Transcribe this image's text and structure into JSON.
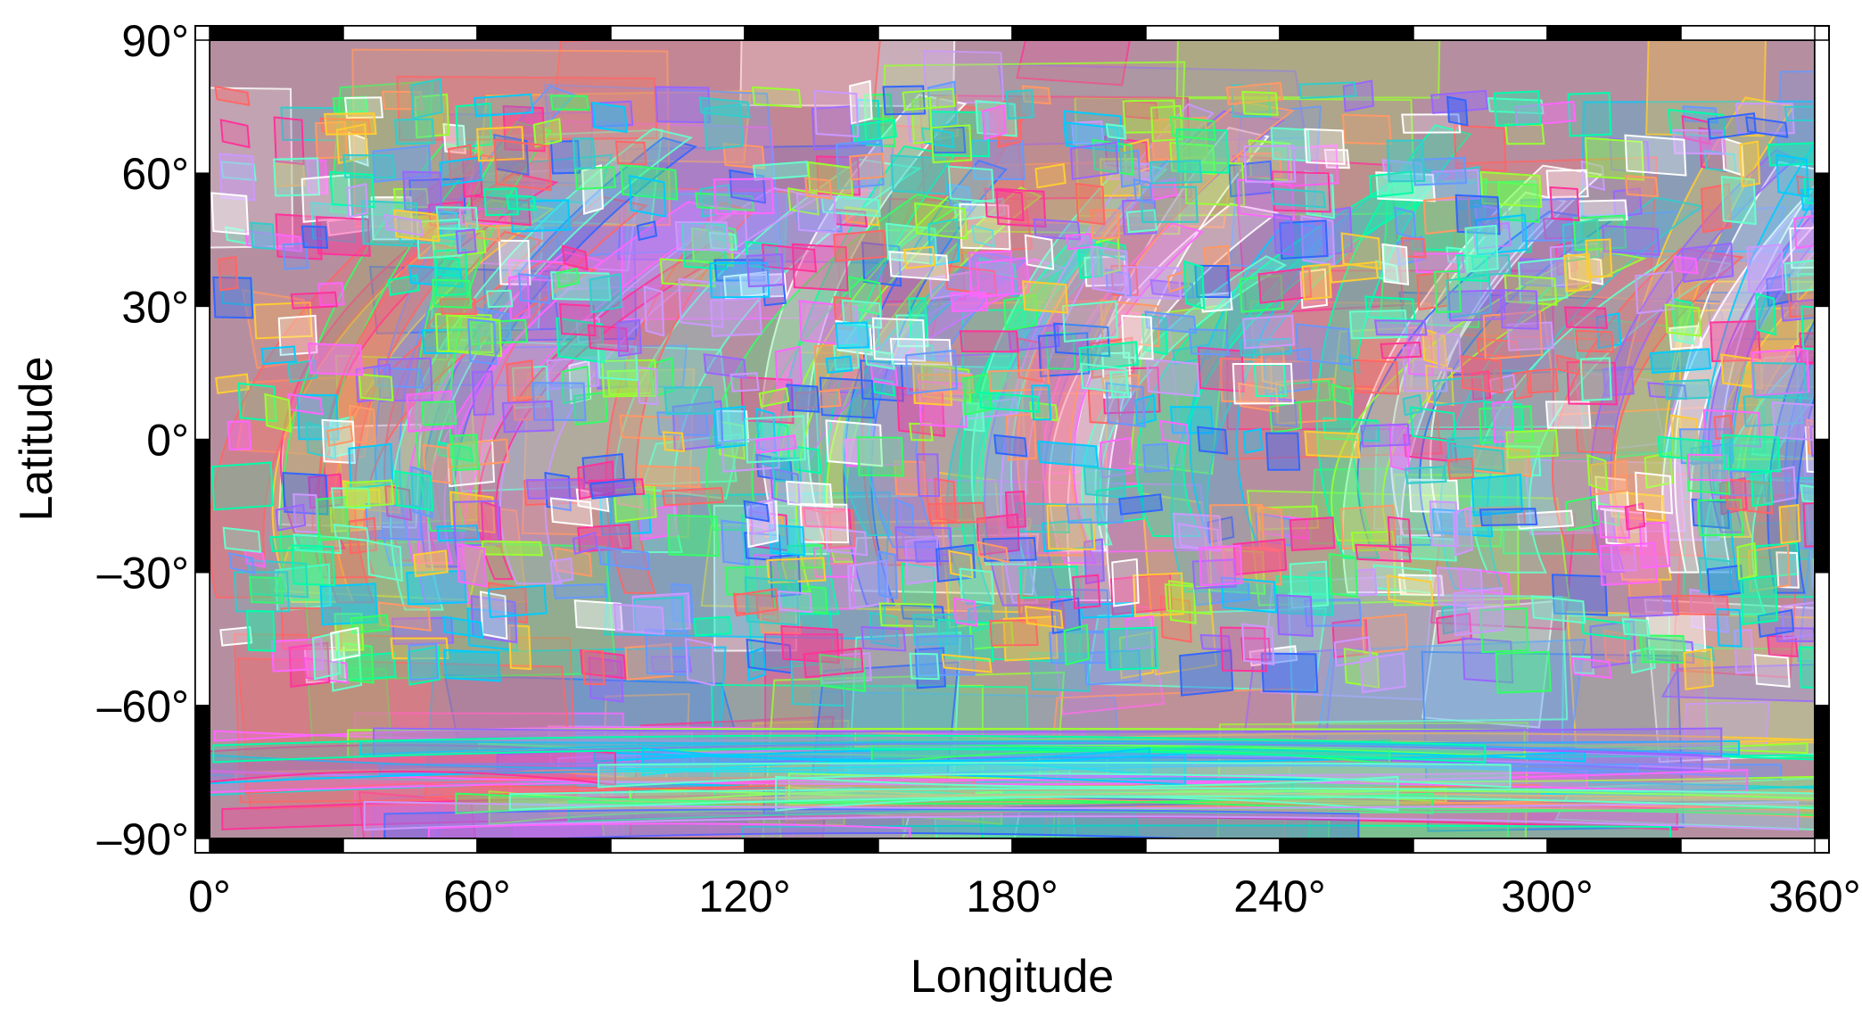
{
  "map": {
    "projection": "equirectangular",
    "longitude_range": [
      0,
      360
    ],
    "latitude_range": [
      -90,
      90
    ],
    "frame": "alternating black and white graticule bars every 30 degrees",
    "footprint_palette": [
      "#ff3399",
      "#33ff66",
      "#00ccff",
      "#9966ff",
      "#ff6666",
      "#66ffcc",
      "#ffcc33",
      "#3366ff",
      "#ff66ff",
      "#00ffaa",
      "#cc99ff",
      "#ff9966",
      "#33cccc",
      "#99ff33",
      "#ffffff",
      "#6699ff"
    ],
    "background_color": "#b58fa0"
  },
  "chart_data": {
    "type": "map",
    "xlabel": "Longitude",
    "ylabel": "Latitude",
    "xlim": [
      0,
      360
    ],
    "ylim": [
      -90,
      90
    ],
    "x_ticks": [
      {
        "value": 0,
        "label": "0°"
      },
      {
        "value": 60,
        "label": "60°"
      },
      {
        "value": 120,
        "label": "120°"
      },
      {
        "value": 180,
        "label": "180°"
      },
      {
        "value": 240,
        "label": "240°"
      },
      {
        "value": 300,
        "label": "300°"
      },
      {
        "value": 360,
        "label": "360°"
      }
    ],
    "y_ticks": [
      {
        "value": 90,
        "label": "90°"
      },
      {
        "value": 60,
        "label": "60°"
      },
      {
        "value": 30,
        "label": "30°"
      },
      {
        "value": 0,
        "label": "0°"
      },
      {
        "value": -30,
        "label": "–30°"
      },
      {
        "value": -60,
        "label": "–60°"
      },
      {
        "value": -90,
        "label": "–90°"
      }
    ],
    "grid": false
  }
}
